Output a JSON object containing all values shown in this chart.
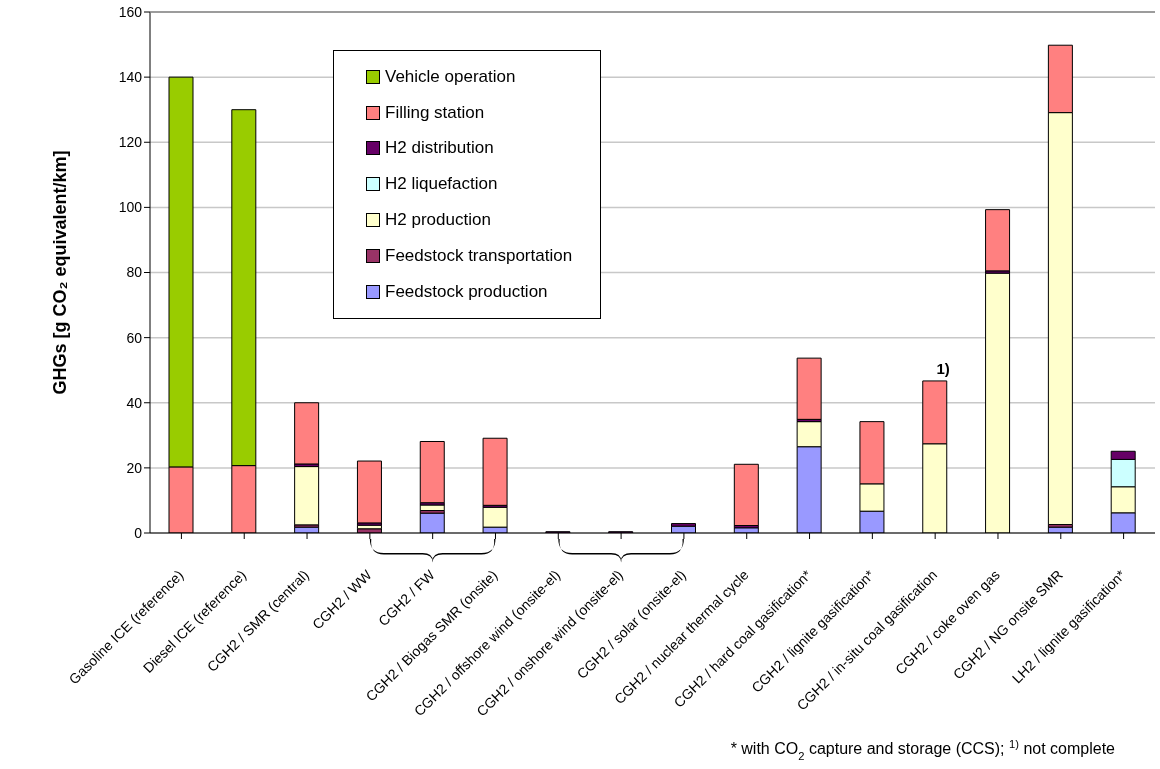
{
  "chart_data": {
    "type": "bar",
    "stacked": true,
    "ylabel": "GHGs [g CO₂ equivalent/km]",
    "categories": [
      "Gasoline ICE  (reference)",
      "Diesel ICE (reference)",
      "CGH2 / SMR (central)",
      "CGH2 / WW",
      "CGH2 / FW",
      "CGH2 / Biogas SMR (onsite)",
      "CGH2 / offshore wind (onsite-el)",
      "CGH2 / onshore wind (onsite-el)",
      "CGH2 / solar (onsite-el)",
      "CGH2 / nuclear thermal cycle",
      "CGH2 / hard coal gasification*",
      "CGH2 / lignite gasification*",
      "CGH2 / in-situ coal gasification",
      "CGH2 / coke oven gas",
      "CGH2 / NG onsite SMR",
      "LH2 / lignite gasification*"
    ],
    "series": [
      {
        "name": "Feedstock production",
        "color": "#9999ff",
        "values": [
          null,
          null,
          1.8,
          null,
          6.1,
          1.8,
          null,
          null,
          2.1,
          1.6,
          26.5,
          6.7,
          null,
          null,
          1.8,
          6.2
        ]
      },
      {
        "name": "Feedstock transportation",
        "color": "#993366",
        "values": [
          null,
          null,
          0.7,
          1.3,
          0.8,
          null,
          null,
          null,
          null,
          null,
          null,
          null,
          null,
          null,
          0.8,
          null
        ]
      },
      {
        "name": "H2 production",
        "color": "#ffffcc",
        "values": [
          null,
          null,
          17.9,
          1.1,
          1.7,
          6.1,
          null,
          null,
          null,
          null,
          7.7,
          8.4,
          27.4,
          79.8,
          126.5,
          8.0
        ]
      },
      {
        "name": "H2 liquefaction",
        "color": "#ccffff",
        "values": [
          null,
          null,
          null,
          null,
          null,
          null,
          null,
          null,
          null,
          null,
          null,
          null,
          null,
          null,
          null,
          8.4
        ]
      },
      {
        "name": "H2 distribution",
        "color": "#660066",
        "values": [
          null,
          null,
          0.8,
          0.7,
          0.7,
          0.6,
          0.4,
          0.4,
          0.8,
          0.7,
          0.7,
          null,
          null,
          0.7,
          null,
          2.5
        ]
      },
      {
        "name": "Filling station",
        "color": "#ff8080",
        "values": [
          20.3,
          20.7,
          18.8,
          19.0,
          18.8,
          20.6,
          null,
          null,
          null,
          18.8,
          18.8,
          19.1,
          19.3,
          18.8,
          20.7,
          null
        ]
      },
      {
        "name": "Vehicle operation",
        "color": "#99cc00",
        "values": [
          119.7,
          109.3,
          null,
          null,
          null,
          null,
          null,
          null,
          null,
          null,
          null,
          null,
          null,
          null,
          null,
          null
        ]
      }
    ],
    "ylim": [
      0,
      160
    ],
    "yticks": [
      0,
      20,
      40,
      60,
      80,
      100,
      120,
      140,
      160
    ],
    "grid": "y",
    "legend": "top",
    "annotations": [
      {
        "text": "1)",
        "x": "CGH2 / in-situ coal gasification",
        "y": 47.2
      },
      "* with CO$_{2}$ capture and storage (CCS); $^{1)}$ not complete"
    ]
  }
}
